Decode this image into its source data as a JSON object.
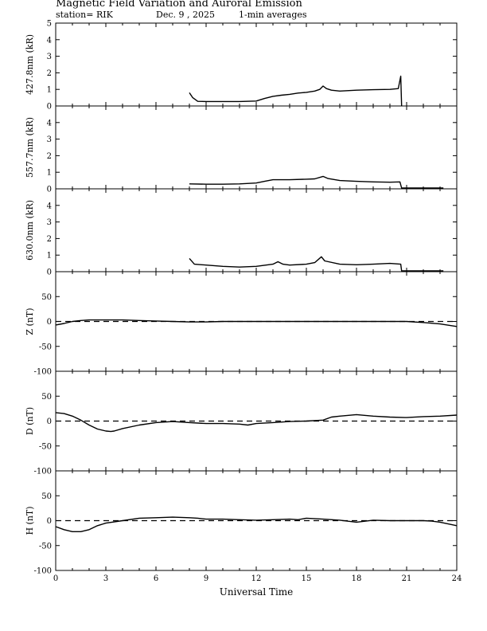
{
  "header": {
    "title": "Magnetic Field Variation and Auroral Emission",
    "station": "station= RIK",
    "date": "Dec. 9 , 2025",
    "averaging": "1-min averages"
  },
  "chart_data": [
    {
      "type": "line",
      "ylabel": "427.8nm (kR)",
      "ylim": [
        0,
        5
      ],
      "yticks": [
        0,
        1,
        2,
        3,
        4,
        5
      ],
      "xlim": [
        0,
        24
      ],
      "series": [
        {
          "values": [
            [
              8.0,
              0.8
            ],
            [
              8.2,
              0.5
            ],
            [
              8.5,
              0.28
            ],
            [
              9.0,
              0.27
            ],
            [
              10.0,
              0.27
            ],
            [
              11.0,
              0.27
            ],
            [
              12.0,
              0.3
            ],
            [
              12.5,
              0.45
            ],
            [
              13.0,
              0.58
            ],
            [
              13.5,
              0.65
            ],
            [
              14.0,
              0.7
            ],
            [
              14.5,
              0.78
            ],
            [
              15.0,
              0.82
            ],
            [
              15.5,
              0.9
            ],
            [
              15.8,
              1.0
            ],
            [
              16.0,
              1.2
            ],
            [
              16.2,
              1.05
            ],
            [
              16.5,
              0.95
            ],
            [
              17.0,
              0.9
            ],
            [
              18.0,
              0.95
            ],
            [
              19.0,
              0.98
            ],
            [
              20.0,
              1.0
            ],
            [
              20.5,
              1.05
            ],
            [
              20.65,
              1.8
            ],
            [
              20.7,
              0.0
            ]
          ]
        }
      ]
    },
    {
      "type": "line",
      "ylabel": "557.7nm (kR)",
      "ylim": [
        0,
        5
      ],
      "yticks": [
        0,
        1,
        2,
        3,
        4
      ],
      "xlim": [
        0,
        24
      ],
      "series": [
        {
          "values": [
            [
              8.0,
              0.3
            ],
            [
              9.0,
              0.28
            ],
            [
              10.0,
              0.28
            ],
            [
              11.0,
              0.3
            ],
            [
              12.0,
              0.35
            ],
            [
              12.5,
              0.45
            ],
            [
              13.0,
              0.55
            ],
            [
              14.0,
              0.55
            ],
            [
              15.0,
              0.58
            ],
            [
              15.5,
              0.6
            ],
            [
              16.0,
              0.75
            ],
            [
              16.3,
              0.62
            ],
            [
              17.0,
              0.5
            ],
            [
              18.0,
              0.45
            ],
            [
              19.0,
              0.42
            ],
            [
              20.0,
              0.4
            ],
            [
              20.6,
              0.42
            ],
            [
              20.7,
              0.05
            ],
            [
              23.2,
              0.05
            ]
          ]
        }
      ]
    },
    {
      "type": "line",
      "ylabel": "630.0nm (kR)",
      "ylim": [
        0,
        5
      ],
      "yticks": [
        0,
        1,
        2,
        3,
        4
      ],
      "xlim": [
        0,
        24
      ],
      "series": [
        {
          "values": [
            [
              8.0,
              0.8
            ],
            [
              8.3,
              0.45
            ],
            [
              9.0,
              0.4
            ],
            [
              10.0,
              0.32
            ],
            [
              11.0,
              0.28
            ],
            [
              12.0,
              0.32
            ],
            [
              13.0,
              0.45
            ],
            [
              13.3,
              0.6
            ],
            [
              13.6,
              0.45
            ],
            [
              14.0,
              0.4
            ],
            [
              15.0,
              0.45
            ],
            [
              15.5,
              0.55
            ],
            [
              15.9,
              0.9
            ],
            [
              16.1,
              0.65
            ],
            [
              17.0,
              0.45
            ],
            [
              18.0,
              0.42
            ],
            [
              19.0,
              0.45
            ],
            [
              20.0,
              0.5
            ],
            [
              20.65,
              0.45
            ],
            [
              20.7,
              0.05
            ],
            [
              23.2,
              0.05
            ]
          ]
        }
      ]
    },
    {
      "type": "line",
      "ylabel": "Z (nT)",
      "ylim": [
        -100,
        100
      ],
      "yticks": [
        -100,
        -50,
        0,
        50
      ],
      "xlim": [
        0,
        24
      ],
      "baseline": 0,
      "series": [
        {
          "values": [
            [
              0,
              -7
            ],
            [
              0.5,
              -4
            ],
            [
              1.0,
              0
            ],
            [
              1.5,
              2
            ],
            [
              2.0,
              3
            ],
            [
              3.0,
              3
            ],
            [
              4.0,
              3
            ],
            [
              5.0,
              2
            ],
            [
              6.0,
              1
            ],
            [
              7.0,
              0
            ],
            [
              8.0,
              -1
            ],
            [
              9.0,
              -1
            ],
            [
              10.0,
              0
            ],
            [
              12.0,
              0
            ],
            [
              14.0,
              0
            ],
            [
              16.0,
              0
            ],
            [
              18.0,
              0
            ],
            [
              20.0,
              0
            ],
            [
              21.0,
              0
            ],
            [
              22.0,
              -2
            ],
            [
              23.0,
              -5
            ],
            [
              24.0,
              -10
            ]
          ]
        }
      ]
    },
    {
      "type": "line",
      "ylabel": "D (nT)",
      "ylim": [
        -100,
        100
      ],
      "yticks": [
        -100,
        -50,
        0,
        50
      ],
      "xlim": [
        0,
        24
      ],
      "baseline": 0,
      "series": [
        {
          "values": [
            [
              0,
              17
            ],
            [
              0.5,
              15
            ],
            [
              1.0,
              10
            ],
            [
              1.5,
              2
            ],
            [
              2.0,
              -8
            ],
            [
              2.5,
              -16
            ],
            [
              3.0,
              -20
            ],
            [
              3.3,
              -21
            ],
            [
              3.5,
              -20
            ],
            [
              4.0,
              -15
            ],
            [
              5.0,
              -8
            ],
            [
              6.0,
              -3
            ],
            [
              7.0,
              -1
            ],
            [
              8.0,
              -3
            ],
            [
              9.0,
              -5
            ],
            [
              10.0,
              -5
            ],
            [
              11.0,
              -6
            ],
            [
              11.5,
              -8
            ],
            [
              12.0,
              -5
            ],
            [
              13.0,
              -3
            ],
            [
              14.0,
              -1
            ],
            [
              15.0,
              0
            ],
            [
              16.0,
              2
            ],
            [
              16.5,
              8
            ],
            [
              17.0,
              10
            ],
            [
              18.0,
              13
            ],
            [
              19.0,
              10
            ],
            [
              20.0,
              8
            ],
            [
              21.0,
              7
            ],
            [
              22.0,
              9
            ],
            [
              23.0,
              10
            ],
            [
              24.0,
              12
            ]
          ]
        }
      ]
    },
    {
      "type": "line",
      "ylabel": "H (nT)",
      "ylim": [
        -100,
        100
      ],
      "yticks": [
        -100,
        -50,
        0,
        50
      ],
      "xlim": [
        0,
        24
      ],
      "xticks": [
        0,
        3,
        6,
        9,
        12,
        15,
        18,
        21,
        24
      ],
      "xlabel": "Universal Time",
      "baseline": 0,
      "series": [
        {
          "values": [
            [
              0,
              -12
            ],
            [
              0.5,
              -18
            ],
            [
              1.0,
              -22
            ],
            [
              1.5,
              -22
            ],
            [
              2.0,
              -18
            ],
            [
              2.5,
              -10
            ],
            [
              3.0,
              -5
            ],
            [
              4.0,
              0
            ],
            [
              5.0,
              5
            ],
            [
              6.0,
              6
            ],
            [
              7.0,
              7
            ],
            [
              8.0,
              6
            ],
            [
              8.5,
              5
            ],
            [
              9.0,
              3
            ],
            [
              10.0,
              3
            ],
            [
              11.0,
              2
            ],
            [
              12.0,
              1
            ],
            [
              13.0,
              2
            ],
            [
              14.0,
              3
            ],
            [
              14.5,
              2
            ],
            [
              15.0,
              5
            ],
            [
              16.0,
              3
            ],
            [
              17.0,
              1
            ],
            [
              18.0,
              -3
            ],
            [
              19.0,
              1
            ],
            [
              20.0,
              0
            ],
            [
              21.0,
              0
            ],
            [
              22.0,
              0
            ],
            [
              22.5,
              -1
            ],
            [
              23.0,
              -3
            ],
            [
              24.0,
              -10
            ]
          ]
        }
      ]
    }
  ]
}
